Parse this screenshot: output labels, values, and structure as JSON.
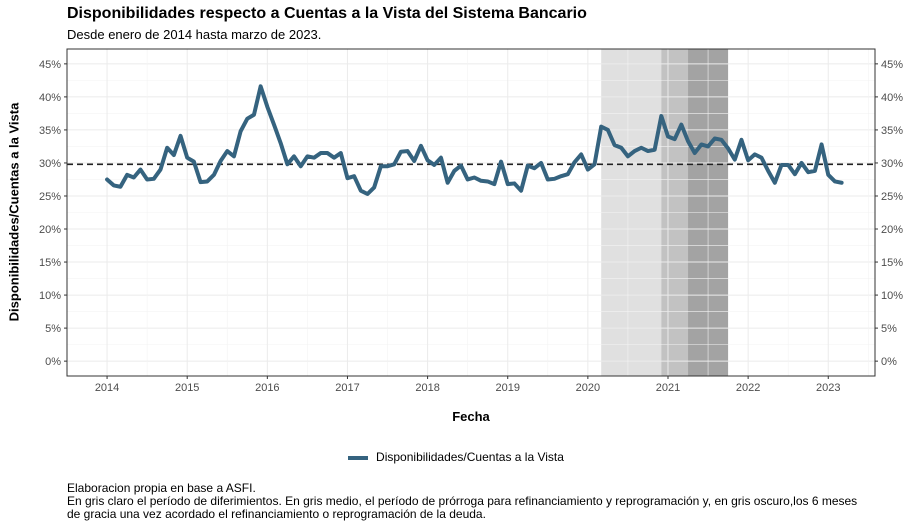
{
  "chart_data": {
    "type": "line",
    "title": "Disponibilidades respecto a Cuentas a la Vista del Sistema Bancario",
    "subtitle": "Desde enero de 2014 hasta marzo de 2023.",
    "xlabel": "Fecha",
    "ylabel": "Disponibilidades/Cuentas a la Vista",
    "xlim": [
      "2013-07",
      "2023-08"
    ],
    "ylim": [
      -2.25,
      47.25
    ],
    "x_ticks": [
      "2014",
      "2015",
      "2016",
      "2017",
      "2018",
      "2019",
      "2020",
      "2021",
      "2022",
      "2023"
    ],
    "y_ticks": [
      "0%",
      "5%",
      "10%",
      "15%",
      "20%",
      "25%",
      "30%",
      "35%",
      "40%",
      "45%"
    ],
    "y_tick_values": [
      0,
      5,
      10,
      15,
      20,
      25,
      30,
      35,
      40,
      45
    ],
    "grid": true,
    "legend_position": "bottom",
    "reference_line": {
      "value": 29.8,
      "style": "dashed"
    },
    "shaded_periods": [
      {
        "start": "2020-03",
        "end": "2020-12",
        "shade": "light",
        "color": "#e0e0e0"
      },
      {
        "start": "2020-12",
        "end": "2021-04",
        "shade": "medium",
        "color": "#c2c2c2"
      },
      {
        "start": "2021-04",
        "end": "2021-10",
        "shade": "dark",
        "color": "#a3a3a3"
      }
    ],
    "series": [
      {
        "name": "Disponibilidades/Cuentas a la Vista",
        "color": "#35637f",
        "start": "2014-01",
        "frequency": "monthly",
        "values": [
          27.5,
          26.6,
          26.4,
          28.2,
          27.8,
          29.0,
          27.5,
          27.6,
          29.0,
          32.3,
          31.2,
          34.1,
          30.8,
          30.2,
          27.1,
          27.2,
          28.2,
          30.3,
          31.8,
          31.0,
          34.8,
          36.7,
          37.3,
          41.6,
          38.5,
          35.8,
          33.0,
          29.8,
          31.0,
          29.5,
          31.0,
          30.8,
          31.5,
          31.5,
          30.8,
          31.5,
          27.7,
          28.0,
          25.8,
          25.3,
          26.3,
          29.5,
          29.5,
          29.8,
          31.7,
          31.8,
          30.3,
          32.6,
          30.4,
          29.7,
          30.8,
          27.0,
          28.8,
          29.6,
          27.5,
          27.8,
          27.3,
          27.2,
          26.8,
          30.2,
          26.8,
          26.9,
          25.8,
          29.6,
          29.2,
          30.0,
          27.5,
          27.6,
          28.0,
          28.3,
          30.1,
          31.3,
          29.0,
          29.8,
          35.5,
          35.0,
          32.7,
          32.3,
          31.0,
          31.8,
          32.3,
          31.8,
          32.0,
          37.1,
          34.0,
          33.6,
          35.8,
          33.3,
          31.5,
          32.8,
          32.5,
          33.7,
          33.5,
          32.2,
          30.5,
          33.5,
          30.4,
          31.3,
          30.8,
          28.8,
          27.0,
          29.7,
          29.7,
          28.3,
          30.0,
          28.6,
          28.8,
          32.8,
          28.2,
          27.2,
          27.0
        ]
      }
    ]
  },
  "legend": {
    "label": "Disponibilidades/Cuentas a la Vista"
  },
  "caption": {
    "line1": "Elaboracion propia en base a ASFI.",
    "line2": "En gris claro el período de diferimientos. En gris medio, el período de prórroga para refinanciamiento y reprogramación y, en gris oscuro,los 6 meses",
    "line3": "de gracia una vez acordado el refinanciamiento o reprogramación de la deuda."
  }
}
